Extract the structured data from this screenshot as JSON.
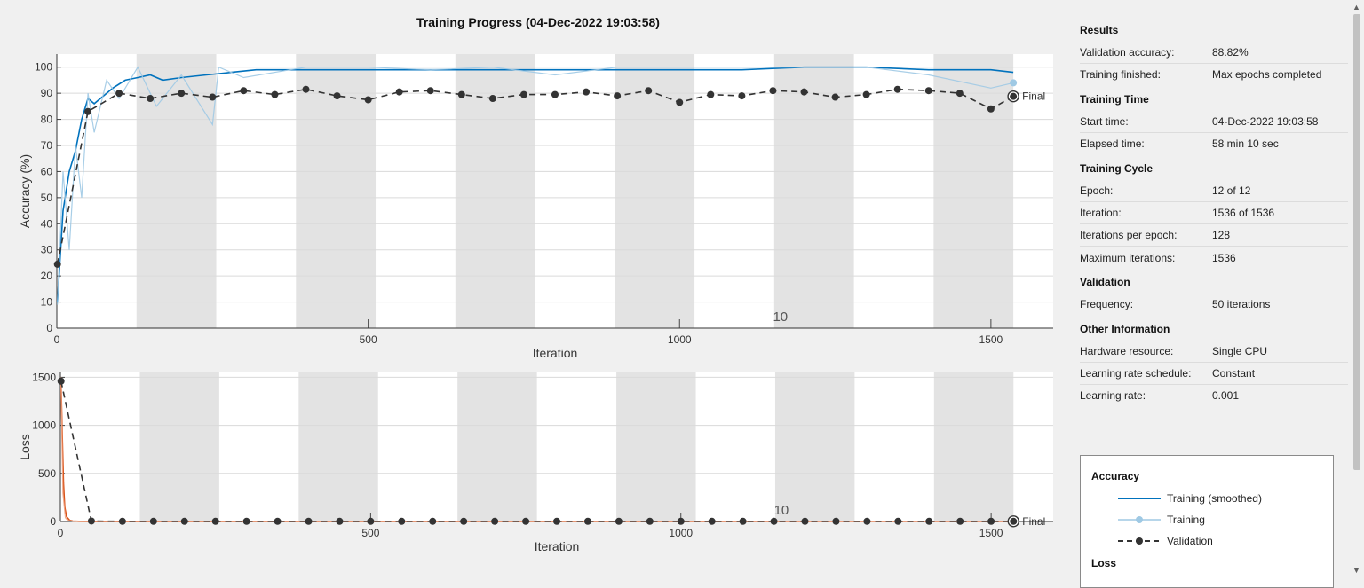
{
  "title": "Training Progress (04-Dec-2022 19:03:58)",
  "colors": {
    "training_smoothed_acc": "#0072bd",
    "training_raw_acc": "#9fc9e4",
    "training_smoothed_loss": "#d95319",
    "training_raw_loss": "#f0a585",
    "validation": "#333333",
    "epoch_shade": "#e3e3e3"
  },
  "chart_data": [
    {
      "type": "line",
      "ylabel": "Accuracy (%)",
      "xlabel": "Iteration",
      "xlim": [
        0,
        1600
      ],
      "ylim": [
        0,
        105
      ],
      "xticks": [
        "0",
        "500",
        "1000",
        "1500"
      ],
      "yticks": [
        "0",
        "10",
        "20",
        "30",
        "40",
        "50",
        "60",
        "70",
        "80",
        "90",
        "100"
      ],
      "grid": true,
      "epoch_label": "10",
      "final_label": "Final",
      "series": [
        {
          "name": "Training (smoothed)",
          "style": "solid",
          "x": [
            1,
            10,
            20,
            30,
            40,
            50,
            60,
            75,
            90,
            110,
            130,
            150,
            170,
            200,
            240,
            280,
            320,
            400,
            500,
            600,
            700,
            800,
            900,
            1000,
            1100,
            1200,
            1300,
            1400,
            1450,
            1500,
            1536
          ],
          "y": [
            10,
            45,
            60,
            68,
            80,
            88,
            86,
            89,
            92,
            95,
            96,
            97,
            95,
            96,
            97,
            98,
            99,
            99,
            99,
            99,
            99,
            99,
            99,
            99,
            99,
            100,
            100,
            99,
            99,
            99,
            98
          ]
        },
        {
          "name": "Training",
          "style": "markers",
          "x": [
            1,
            10,
            20,
            30,
            40,
            50,
            60,
            80,
            100,
            130,
            160,
            200,
            250,
            260,
            300,
            400,
            500,
            600,
            700,
            800,
            900,
            1000,
            1100,
            1200,
            1300,
            1400,
            1500,
            1536
          ],
          "y": [
            9,
            60,
            30,
            70,
            50,
            90,
            75,
            95,
            88,
            100,
            85,
            97,
            78,
            100,
            96,
            100,
            100,
            99,
            100,
            97,
            100,
            100,
            100,
            100,
            100,
            97,
            92,
            94
          ]
        },
        {
          "name": "Validation",
          "style": "dashed-markers",
          "x": [
            1,
            50,
            100,
            150,
            200,
            250,
            300,
            350,
            400,
            450,
            500,
            550,
            600,
            650,
            700,
            750,
            800,
            850,
            900,
            950,
            1000,
            1050,
            1100,
            1150,
            1200,
            1250,
            1300,
            1350,
            1400,
            1450,
            1500,
            1536
          ],
          "y": [
            24.5,
            83,
            90,
            88,
            90,
            88.5,
            91,
            89.5,
            91.5,
            89,
            87.5,
            90.5,
            91,
            89.5,
            88,
            89.5,
            89.5,
            90.5,
            89,
            91,
            86.5,
            89.5,
            89,
            91,
            90.5,
            88.5,
            89.5,
            91.5,
            91,
            90,
            84,
            88.8
          ]
        }
      ]
    },
    {
      "type": "line",
      "ylabel": "Loss",
      "xlabel": "Iteration",
      "xlim": [
        0,
        1600
      ],
      "ylim": [
        0,
        1550
      ],
      "xticks": [
        "0",
        "500",
        "1000",
        "1500"
      ],
      "yticks": [
        "0",
        "500",
        "1000",
        "1500"
      ],
      "grid": true,
      "epoch_label": "10",
      "final_label": "Final",
      "series": [
        {
          "name": "Training (smoothed)",
          "style": "solid",
          "x": [
            1,
            3,
            5,
            7,
            10,
            15,
            20,
            30,
            50,
            1536
          ],
          "y": [
            1460,
            900,
            400,
            150,
            50,
            12,
            5,
            2,
            1,
            0.5
          ]
        },
        {
          "name": "Training",
          "style": "markers",
          "x": [
            1,
            4,
            8,
            12,
            20,
            1536
          ],
          "y": [
            1500,
            300,
            40,
            10,
            3,
            0.5
          ]
        },
        {
          "name": "Validation",
          "style": "dashed-markers",
          "x": [
            1,
            50,
            100,
            150,
            200,
            250,
            300,
            350,
            400,
            450,
            500,
            550,
            600,
            650,
            700,
            750,
            800,
            850,
            900,
            950,
            1000,
            1050,
            1100,
            1150,
            1200,
            1250,
            1300,
            1350,
            1400,
            1450,
            1500,
            1536
          ],
          "y": [
            1460,
            5,
            2,
            2,
            2,
            2,
            2,
            2,
            2,
            2,
            2,
            2,
            2,
            2,
            2,
            2,
            2,
            2,
            2,
            2,
            2,
            2,
            2,
            2,
            2,
            2,
            2,
            2,
            2,
            2,
            2,
            2
          ]
        }
      ]
    }
  ],
  "panel": {
    "results_title": "Results",
    "val_acc_label": "Validation accuracy:",
    "val_acc_value": "88.82%",
    "finished_label": "Training finished:",
    "finished_value": "Max epochs completed",
    "time_title": "Training Time",
    "start_label": "Start time:",
    "start_value": "04-Dec-2022 19:03:58",
    "elapsed_label": "Elapsed time:",
    "elapsed_value": "58 min 10 sec",
    "cycle_title": "Training Cycle",
    "epoch_label": "Epoch:",
    "epoch_value": "12 of 12",
    "iter_label": "Iteration:",
    "iter_value": "1536 of 1536",
    "ipe_label": "Iterations per epoch:",
    "ipe_value": "128",
    "maxiter_label": "Maximum iterations:",
    "maxiter_value": "1536",
    "validation_title": "Validation",
    "freq_label": "Frequency:",
    "freq_value": "50 iterations",
    "other_title": "Other Information",
    "hw_label": "Hardware resource:",
    "hw_value": "Single CPU",
    "lrs_label": "Learning rate schedule:",
    "lrs_value": "Constant",
    "lr_label": "Learning rate:",
    "lr_value": "0.001"
  },
  "legend": {
    "acc_title": "Accuracy",
    "smoothed": "Training (smoothed)",
    "training": "Training",
    "validation": "Validation",
    "loss_title": "Loss"
  }
}
